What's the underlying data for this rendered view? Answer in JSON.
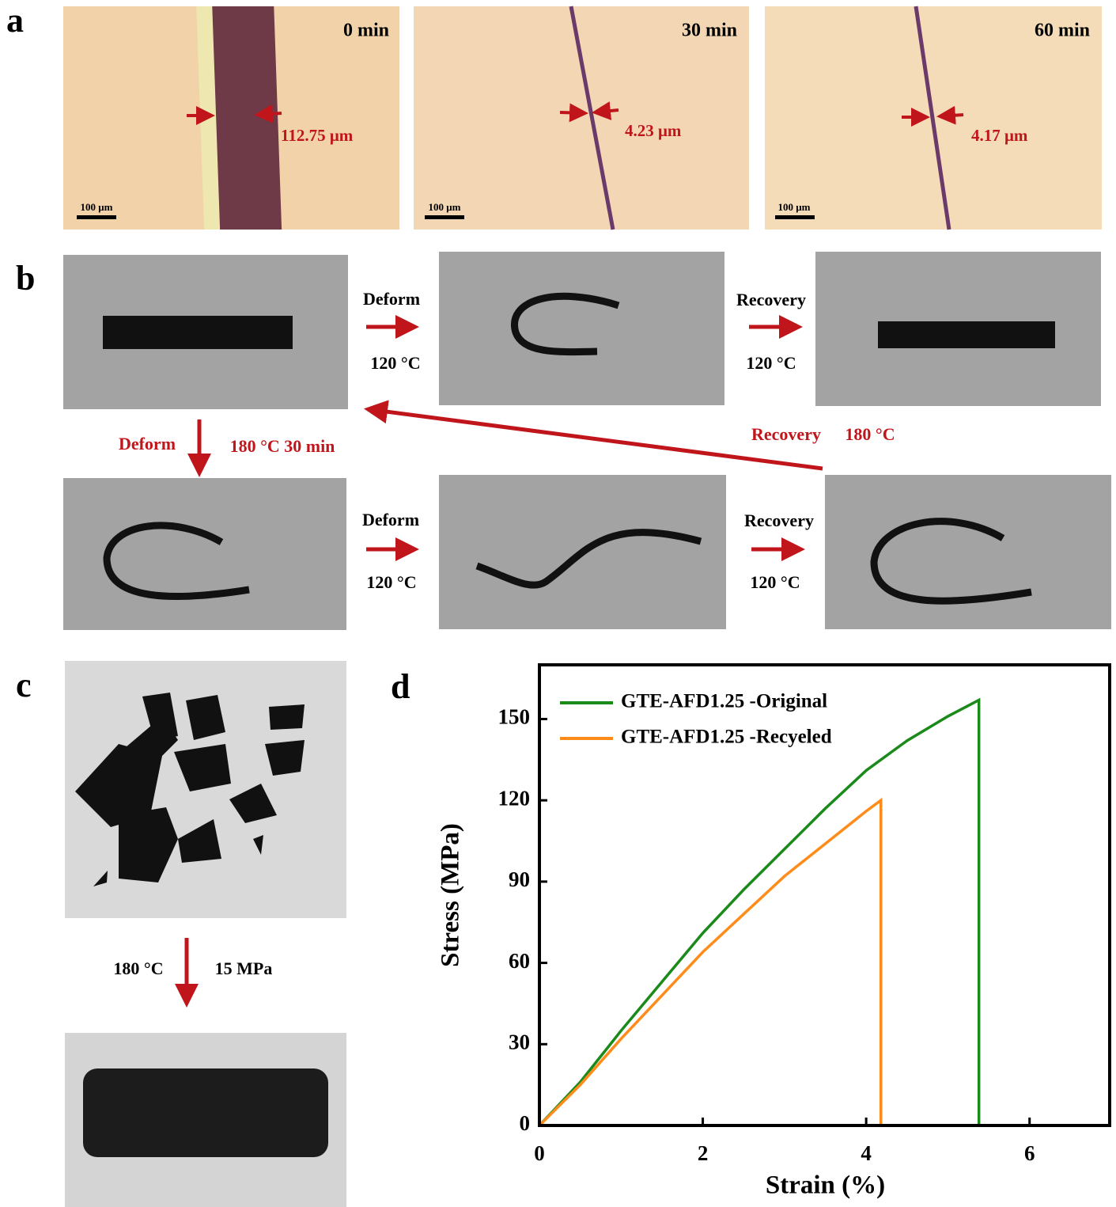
{
  "panel_a": {
    "label": "a",
    "images": [
      {
        "time": "0 min",
        "gap": "112.75 μm",
        "scale": "100 μm"
      },
      {
        "time": "30 min",
        "gap": "4.23 μm",
        "scale": "100 μm"
      },
      {
        "time": "60 min",
        "gap": "4.17 μm",
        "scale": "100 μm"
      }
    ]
  },
  "panel_b": {
    "label": "b",
    "row1": [
      {
        "step": "Deform",
        "temp": "120 °C"
      },
      {
        "step": "Recovery",
        "temp": "120 °C"
      }
    ],
    "down": {
      "step": "Deform",
      "temp": "180 °C 30 min"
    },
    "back": {
      "step": "Recovery",
      "temp": "180 °C"
    },
    "row2": [
      {
        "step": "Deform",
        "temp": "120 °C"
      },
      {
        "step": "Recovery",
        "temp": "120 °C"
      }
    ]
  },
  "panel_c": {
    "label": "c",
    "temp": "180 °C",
    "pressure": "15 MPa"
  },
  "chart_data": {
    "label": "d",
    "type": "line",
    "x_label": "Strain (%)",
    "y_label": "Stress (MPa)",
    "xlim": [
      0,
      7
    ],
    "ylim": [
      0,
      170
    ],
    "xticks": [
      0,
      2,
      4,
      6
    ],
    "yticks": [
      0,
      30,
      60,
      90,
      120,
      150
    ],
    "series": [
      {
        "name": "GTE-AFD1.25 -Original",
        "color": "#1a8a1a",
        "x": [
          0,
          0.5,
          1,
          1.5,
          2,
          2.5,
          3,
          3.5,
          4,
          4.5,
          5,
          5.38,
          5.38
        ],
        "values": [
          0,
          16,
          35,
          53,
          71,
          87,
          102,
          117,
          131,
          142,
          151,
          157,
          0
        ]
      },
      {
        "name": "GTE-AFD1.25 -Recyeled",
        "color": "#ff8c1a",
        "x": [
          0,
          0.5,
          1,
          1.5,
          2,
          2.5,
          3,
          3.5,
          4,
          4.18,
          4.18
        ],
        "values": [
          0,
          15,
          32,
          48,
          64,
          78,
          92,
          104,
          116,
          120,
          0
        ]
      }
    ]
  }
}
